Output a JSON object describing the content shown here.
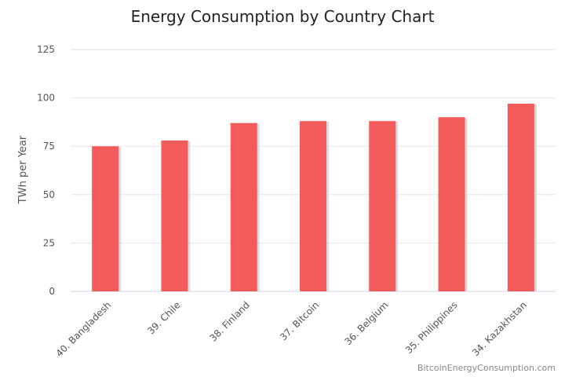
{
  "chart_data": {
    "type": "bar",
    "title": "Energy Consumption by Country Chart",
    "xlabel": "",
    "ylabel": "TWh per Year",
    "ylim": [
      0,
      125
    ],
    "yticks": [
      0,
      25,
      50,
      75,
      100,
      125
    ],
    "grid": true,
    "legend": "none",
    "categories": [
      "40. Bangladesh",
      "39. Chile",
      "38. Finland",
      "37. Bitcoin",
      "36. Belgium",
      "35. Philippines",
      "34. Kazakhstan"
    ],
    "values": [
      75,
      78,
      87,
      88,
      88,
      90,
      97
    ],
    "bar_color": "#f45b5b",
    "shadow_color": "#cccccc"
  },
  "credit": "BitcoinEnergyConsumption.com"
}
